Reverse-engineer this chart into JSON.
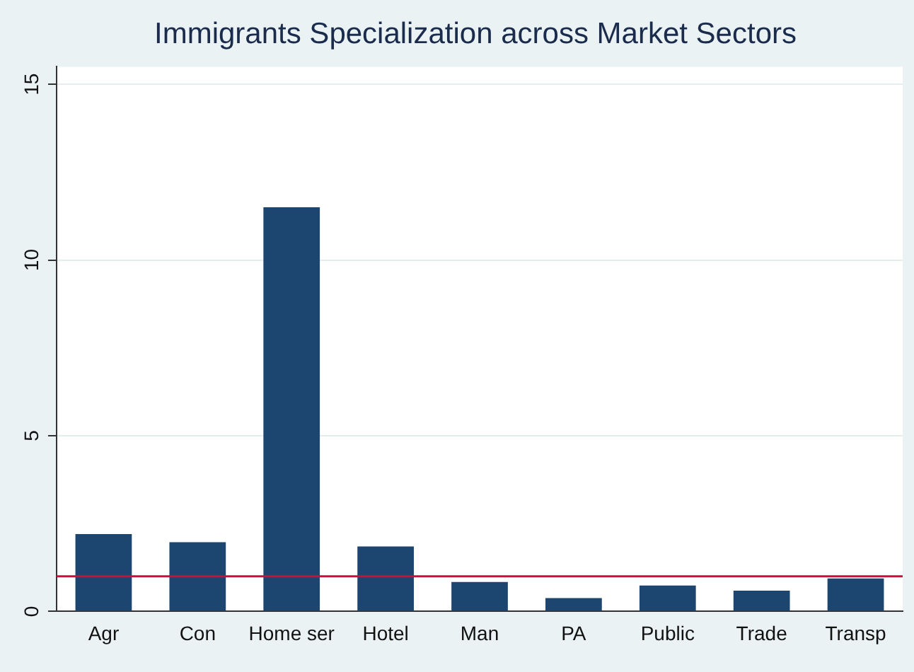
{
  "chart_data": {
    "type": "bar",
    "title": "Immigrants Specialization across Market Sectors",
    "categories": [
      "Agr",
      "Con",
      "Home ser",
      "Hotel",
      "Man",
      "PA",
      "Public",
      "Trade",
      "Transp"
    ],
    "values": [
      2.2,
      1.97,
      11.5,
      1.85,
      0.84,
      0.38,
      0.74,
      0.59,
      0.94
    ],
    "color": "#1c4670",
    "ylim": [
      0,
      15.5
    ],
    "yticks": [
      0,
      5,
      10,
      15
    ],
    "grid": "y",
    "legend": false,
    "ref_lines": [
      {
        "axis": "y",
        "value": 1,
        "color": "#c8103c"
      }
    ]
  }
}
